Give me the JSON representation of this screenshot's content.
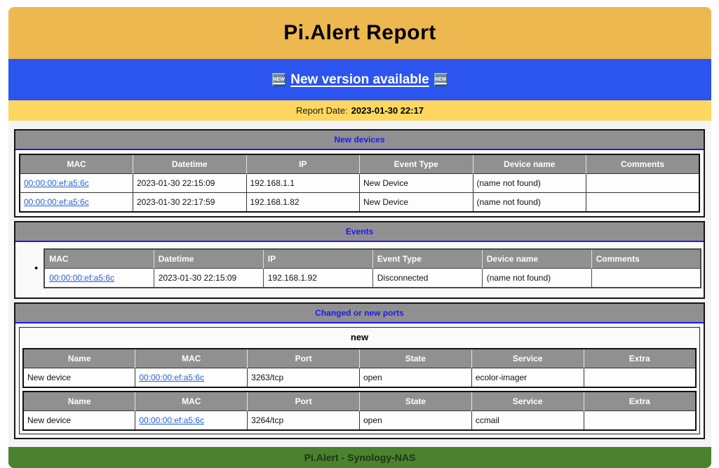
{
  "header": {
    "title": "Pi.Alert Report"
  },
  "banner": {
    "link_label": "New version available",
    "badge_label": "NEW"
  },
  "report_date": {
    "label": "Report Date:",
    "value": "2023-01-30 22:17"
  },
  "colors": {
    "header_bg": "#EDB84F",
    "banner_bg": "#2B55EE",
    "date_bg": "#FDD75F",
    "section_header_bg": "#909090",
    "section_title_text": "#1b1bf2",
    "link": "#2563d4",
    "footer_bg": "#4A8230"
  },
  "sections": {
    "new_devices": {
      "title": "New devices",
      "columns": [
        "MAC",
        "Datetime",
        "IP",
        "Event Type",
        "Device name",
        "Comments"
      ],
      "rows": [
        {
          "mac": "00:00:00:ef:a5:6c",
          "datetime": "2023-01-30 22:15:09",
          "ip": "192.168.1.1",
          "event_type": "New Device",
          "device_name": "(name not found)",
          "comments": ""
        },
        {
          "mac": "00:00:00:ef:a5:6c",
          "datetime": "2023-01-30 22:17:59",
          "ip": "192.168.1.82",
          "event_type": "New Device",
          "device_name": "(name not found)",
          "comments": ""
        }
      ]
    },
    "events": {
      "title": "Events",
      "columns": [
        "MAC",
        "Datetime",
        "IP",
        "Event Type",
        "Device name",
        "Comments"
      ],
      "rows": [
        {
          "mac": "00:00:00:ef:a5:6c",
          "datetime": "2023-01-30 22:15:09",
          "ip": "192.168.1.92",
          "event_type": "Disconnected",
          "device_name": "(name not found)",
          "comments": ""
        }
      ]
    },
    "ports": {
      "title": "Changed or new ports",
      "group_label": "new",
      "columns": [
        "Name",
        "MAC",
        "Port",
        "State",
        "Service",
        "Extra"
      ],
      "tables": [
        {
          "rows": [
            {
              "name": "New device",
              "mac": "00:00:00:ef:a5:6c",
              "port": "3263/tcp",
              "state": "open",
              "service": "ecolor-imager",
              "extra": ""
            }
          ]
        },
        {
          "rows": [
            {
              "name": "New device",
              "mac": "00:00:00:ef:a5:6c",
              "port": "3264/tcp",
              "state": "open",
              "service": "ccmail",
              "extra": ""
            }
          ]
        }
      ]
    }
  },
  "footer": {
    "label": "Pi.Alert - Synology-NAS"
  }
}
